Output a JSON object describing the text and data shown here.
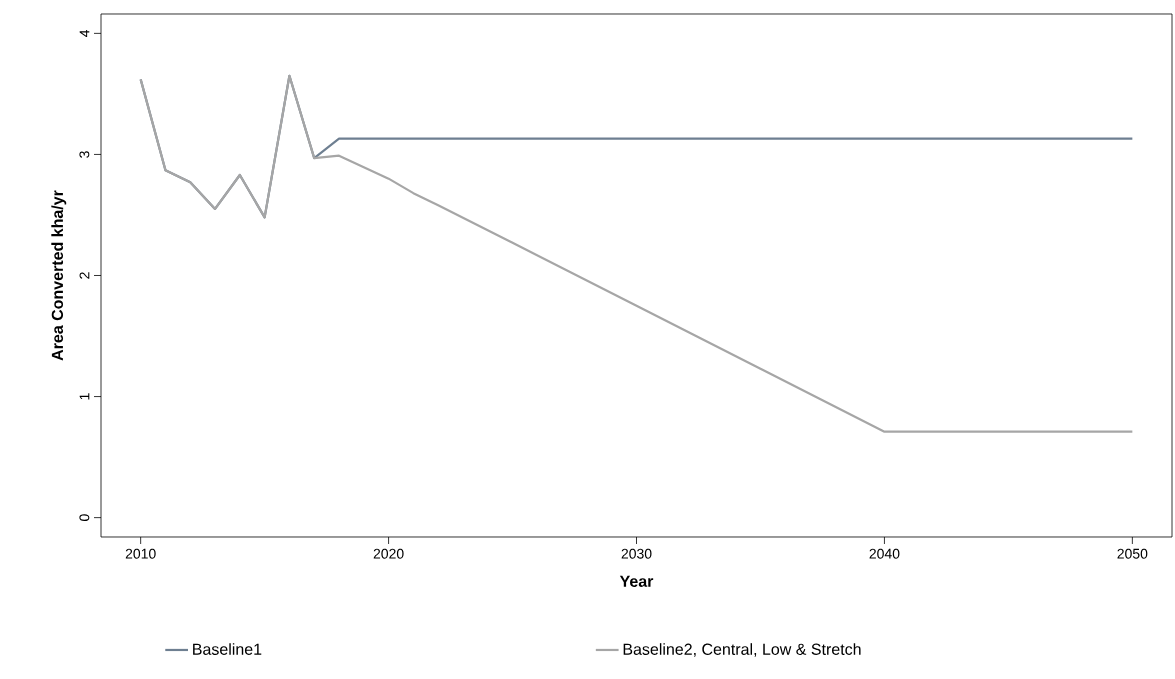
{
  "chart_data": {
    "type": "line",
    "xlabel": "Year",
    "ylabel": "Area Converted kha/yr",
    "xlim": [
      2008.4,
      2051.6
    ],
    "ylim": [
      -0.16,
      4.16
    ],
    "xticks": [
      2010,
      2020,
      2030,
      2040,
      2050
    ],
    "yticks": [
      0,
      1,
      2,
      3,
      4
    ],
    "legend": "bottom",
    "series": [
      {
        "name": "Baseline1",
        "color": "#6e7f91",
        "x": [
          2010,
          2011,
          2012,
          2013,
          2014,
          2015,
          2016,
          2017,
          2018,
          2050
        ],
        "values": [
          3.62,
          2.87,
          2.77,
          2.55,
          2.83,
          2.48,
          3.65,
          2.97,
          3.13,
          3.13
        ]
      },
      {
        "name": "Baseline2, Central, Low & Stretch",
        "color": "#a6a6a6",
        "x": [
          2010,
          2011,
          2012,
          2013,
          2014,
          2015,
          2016,
          2017,
          2018,
          2020,
          2021,
          2022,
          2025,
          2030,
          2035,
          2040,
          2050
        ],
        "values": [
          3.62,
          2.87,
          2.77,
          2.55,
          2.83,
          2.48,
          3.65,
          2.97,
          2.99,
          2.8,
          2.68,
          2.58,
          2.27,
          1.75,
          1.23,
          0.71,
          0.71
        ]
      }
    ]
  }
}
